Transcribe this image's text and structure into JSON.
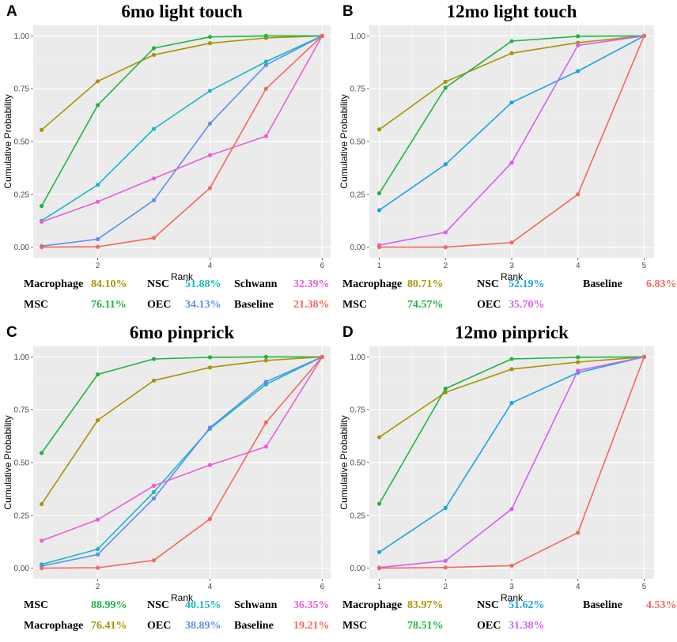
{
  "chart_data": [
    {
      "type": "line",
      "panel_label": "A",
      "title": "6mo light touch",
      "xlabel": "Rank",
      "ylabel": "Cumulative Probability",
      "x": [
        1,
        2,
        3,
        4,
        5,
        6
      ],
      "xticks": [
        "2",
        "4",
        "6"
      ],
      "xtick_values": [
        2,
        4,
        6
      ],
      "xlim": [
        0.85,
        6.15
      ],
      "yticks": [
        "0.00",
        "0.25",
        "0.50",
        "0.75",
        "1.00"
      ],
      "ylim": [
        -0.05,
        1.05
      ],
      "grid": true,
      "series": [
        {
          "name": "Macrophage",
          "color": "#a89400",
          "values": [
            0.555,
            0.785,
            0.91,
            0.965,
            0.99,
            1.0
          ]
        },
        {
          "name": "MSC",
          "color": "#1fb345",
          "values": [
            0.195,
            0.672,
            0.942,
            0.995,
            1.0,
            1.0
          ]
        },
        {
          "name": "NSC",
          "color": "#18b8c4",
          "values": [
            0.125,
            0.295,
            0.56,
            0.74,
            0.878,
            1.0
          ]
        },
        {
          "name": "OEC",
          "color": "#5b8ef0",
          "values": [
            0.005,
            0.038,
            0.222,
            0.585,
            0.862,
            1.0
          ]
        },
        {
          "name": "Schwann",
          "color": "#ea5fd6",
          "values": [
            0.12,
            0.215,
            0.325,
            0.435,
            0.525,
            1.0
          ]
        },
        {
          "name": "Baseline",
          "color": "#f2695f",
          "values": [
            0.0,
            0.002,
            0.044,
            0.28,
            0.75,
            1.0
          ]
        }
      ],
      "legend": [
        [
          {
            "name": "Macrophage",
            "pct": "84.10%",
            "color": "#a89400"
          },
          {
            "name": "NSC",
            "pct": "51.88%",
            "color": "#18b8c4"
          },
          {
            "name": "Schwann",
            "pct": "32.39%",
            "color": "#ea5fd6"
          }
        ],
        [
          {
            "name": "MSC",
            "pct": "76.11%",
            "color": "#1fb345"
          },
          {
            "name": "OEC",
            "pct": "34.13%",
            "color": "#5b8ef0"
          },
          {
            "name": "Baseline",
            "pct": "21.38%",
            "color": "#f2695f"
          }
        ]
      ]
    },
    {
      "type": "line",
      "panel_label": "B",
      "title": "12mo light touch",
      "xlabel": "Rank",
      "ylabel": "Cumulative Probability",
      "x": [
        1,
        2,
        3,
        4,
        5
      ],
      "xticks": [
        "1",
        "2",
        "3",
        "4",
        "5"
      ],
      "xtick_values": [
        1,
        2,
        3,
        4,
        5
      ],
      "xlim": [
        0.85,
        5.15
      ],
      "yticks": [
        "0.00",
        "0.25",
        "0.50",
        "0.75",
        "1.00"
      ],
      "ylim": [
        -0.05,
        1.05
      ],
      "grid": true,
      "series": [
        {
          "name": "Macrophage",
          "color": "#a89400",
          "values": [
            0.557,
            0.783,
            0.918,
            0.968,
            1.0
          ]
        },
        {
          "name": "MSC",
          "color": "#1fb345",
          "values": [
            0.255,
            0.755,
            0.975,
            0.998,
            1.0
          ]
        },
        {
          "name": "NSC",
          "color": "#1ca3e8",
          "values": [
            0.175,
            0.392,
            0.685,
            0.833,
            1.0
          ]
        },
        {
          "name": "OEC",
          "color": "#d45ff0",
          "values": [
            0.01,
            0.07,
            0.4,
            0.955,
            1.0
          ]
        },
        {
          "name": "Baseline",
          "color": "#f2695f",
          "values": [
            0.0,
            0.0,
            0.022,
            0.25,
            1.0
          ]
        }
      ],
      "legend": [
        [
          {
            "name": "Macrophage",
            "pct": "80.71%",
            "color": "#a89400"
          },
          {
            "name": "NSC",
            "pct": "52.19%",
            "color": "#1ca3e8"
          },
          {
            "name": "Baseline",
            "pct": "6.83%",
            "color": "#f2695f"
          }
        ],
        [
          {
            "name": "MSC",
            "pct": "74.57%",
            "color": "#1fb345"
          },
          {
            "name": "OEC",
            "pct": "35.70%",
            "color": "#d45ff0"
          }
        ]
      ]
    },
    {
      "type": "line",
      "panel_label": "C",
      "title": "6mo pinprick",
      "xlabel": "Rank",
      "ylabel": "Cumulative Probability",
      "x": [
        1,
        2,
        3,
        4,
        5,
        6
      ],
      "xticks": [
        "2",
        "4",
        "6"
      ],
      "xtick_values": [
        2,
        4,
        6
      ],
      "xlim": [
        0.85,
        6.15
      ],
      "yticks": [
        "0.00",
        "0.25",
        "0.50",
        "0.75",
        "1.00"
      ],
      "ylim": [
        -0.05,
        1.05
      ],
      "grid": true,
      "series": [
        {
          "name": "MSC",
          "color": "#1fb345",
          "values": [
            0.545,
            0.917,
            0.99,
            0.998,
            1.0,
            1.0
          ]
        },
        {
          "name": "Macrophage",
          "color": "#a89400",
          "values": [
            0.303,
            0.7,
            0.888,
            0.95,
            0.983,
            1.0
          ]
        },
        {
          "name": "NSC",
          "color": "#18b8c4",
          "values": [
            0.018,
            0.09,
            0.36,
            0.66,
            0.87,
            1.0
          ]
        },
        {
          "name": "OEC",
          "color": "#5b8ef0",
          "values": [
            0.01,
            0.065,
            0.33,
            0.665,
            0.882,
            1.0
          ]
        },
        {
          "name": "Schwann",
          "color": "#ea5fd6",
          "values": [
            0.13,
            0.23,
            0.39,
            0.488,
            0.575,
            1.0
          ]
        },
        {
          "name": "Baseline",
          "color": "#f2695f",
          "values": [
            0.0,
            0.002,
            0.037,
            0.233,
            0.69,
            1.0
          ]
        }
      ],
      "legend": [
        [
          {
            "name": "MSC",
            "pct": "88.99%",
            "color": "#1fb345"
          },
          {
            "name": "NSC",
            "pct": "40.15%",
            "color": "#18b8c4"
          },
          {
            "name": "Schwann",
            "pct": "36.35%",
            "color": "#ea5fd6"
          }
        ],
        [
          {
            "name": "Macrophage",
            "pct": "76.41%",
            "color": "#a89400"
          },
          {
            "name": "OEC",
            "pct": "38.89%",
            "color": "#5b8ef0"
          },
          {
            "name": "Baseline",
            "pct": "19.21%",
            "color": "#f2695f"
          }
        ]
      ]
    },
    {
      "type": "line",
      "panel_label": "D",
      "title": "12mo pinprick",
      "xlabel": "Rank",
      "ylabel": "Cumulative Probability",
      "x": [
        1,
        2,
        3,
        4,
        5
      ],
      "xticks": [
        "1",
        "2",
        "3",
        "4",
        "5"
      ],
      "xtick_values": [
        1,
        2,
        3,
        4,
        5
      ],
      "xlim": [
        0.85,
        5.15
      ],
      "yticks": [
        "0.00",
        "0.25",
        "0.50",
        "0.75",
        "1.00"
      ],
      "ylim": [
        -0.05,
        1.05
      ],
      "grid": true,
      "series": [
        {
          "name": "Macrophage",
          "color": "#a89400",
          "values": [
            0.62,
            0.832,
            0.942,
            0.975,
            1.0
          ]
        },
        {
          "name": "MSC",
          "color": "#1fb345",
          "values": [
            0.305,
            0.85,
            0.99,
            0.998,
            1.0
          ]
        },
        {
          "name": "NSC",
          "color": "#1ca3e8",
          "values": [
            0.076,
            0.285,
            0.782,
            0.925,
            1.0
          ]
        },
        {
          "name": "OEC",
          "color": "#d45ff0",
          "values": [
            0.003,
            0.035,
            0.28,
            0.935,
            1.0
          ]
        },
        {
          "name": "Baseline",
          "color": "#f2695f",
          "values": [
            0.0,
            0.003,
            0.012,
            0.168,
            1.0
          ]
        }
      ],
      "legend": [
        [
          {
            "name": "Macrophage",
            "pct": "83.97%",
            "color": "#a89400"
          },
          {
            "name": "NSC",
            "pct": "51.62%",
            "color": "#1ca3e8"
          },
          {
            "name": "Baseline",
            "pct": "4.53%",
            "color": "#f2695f"
          }
        ],
        [
          {
            "name": "MSC",
            "pct": "78.51%",
            "color": "#1fb345"
          },
          {
            "name": "OEC",
            "pct": "31.38%",
            "color": "#d45ff0"
          }
        ]
      ]
    }
  ]
}
